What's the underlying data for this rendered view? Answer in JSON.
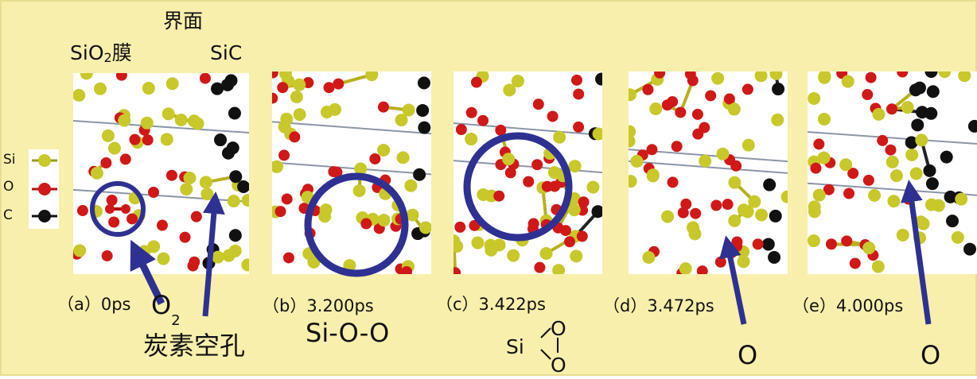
{
  "header": {
    "interface": "界面",
    "sio2_main": "SiO",
    "sio2_sub": "2",
    "sio2_suffix": "膜",
    "sic": "SiC"
  },
  "legend": [
    "Si",
    "O",
    "C"
  ],
  "panels": [
    {
      "caption": "（a）0ps"
    },
    {
      "caption": "（b）3.200ps",
      "annotation": "Si-O-O"
    },
    {
      "caption": "（c）3.422ps",
      "ring": {
        "si": "Si",
        "o_top": "O",
        "o_bottom": "O"
      }
    },
    {
      "caption": "（d）3.472ps",
      "annotation": "O"
    },
    {
      "caption": "（e）4.000ps",
      "annotation": "O"
    }
  ],
  "annotations": {
    "o2_main": "O",
    "o2_sub": "2",
    "vacancy": "炭素空孔"
  }
}
